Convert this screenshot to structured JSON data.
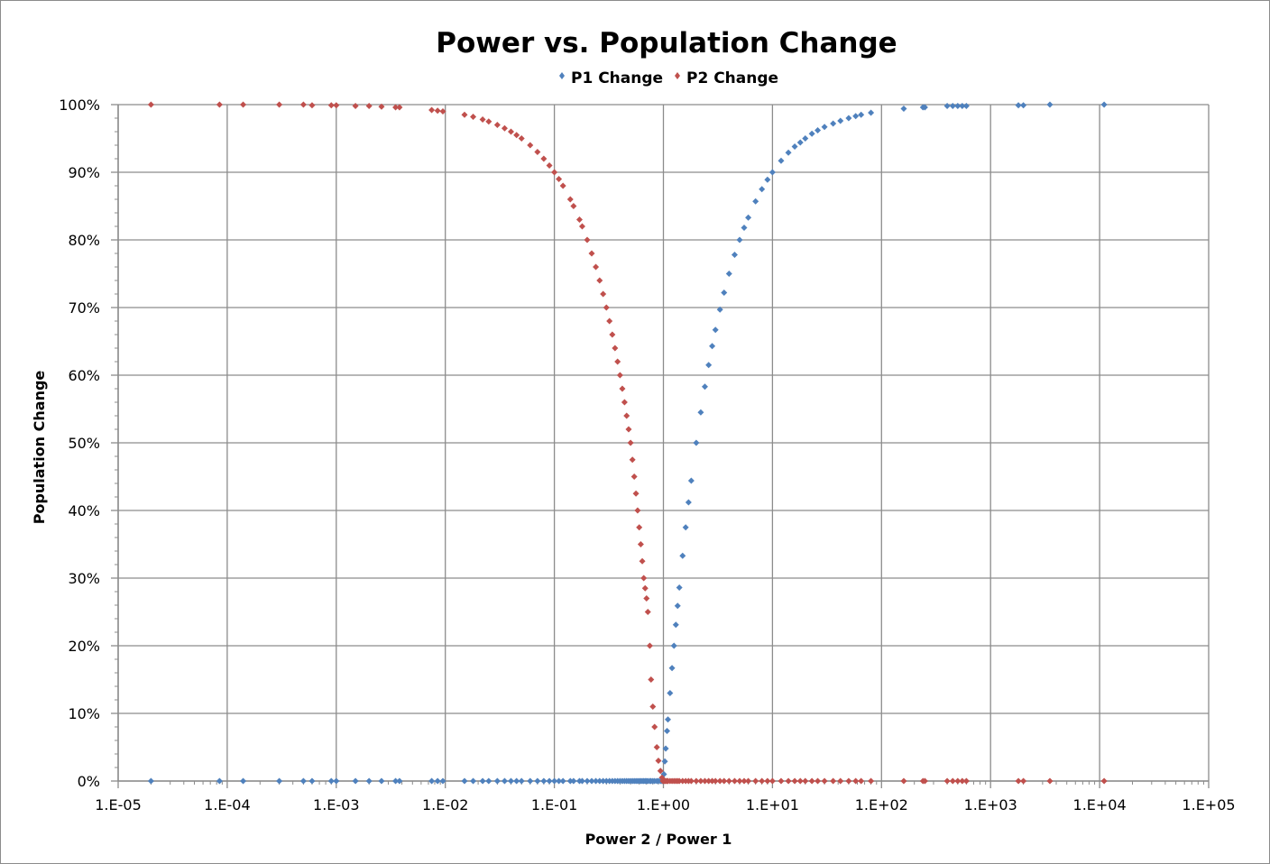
{
  "chart_data": {
    "type": "scatter",
    "title": "Power vs. Population Change",
    "xlabel": "Power 2 / Power 1",
    "ylabel": "Population Change",
    "x_scale": "log",
    "xlim": [
      1e-05,
      100000
    ],
    "ylim": [
      0,
      100
    ],
    "y_unit": "%",
    "grid": true,
    "legend_position": "top",
    "x_tick_labels": [
      "1.E-05",
      "1.E-04",
      "1.E-03",
      "1.E-02",
      "1.E-01",
      "1.E+00",
      "1.E+01",
      "1.E+02",
      "1.E+03",
      "1.E+04",
      "1.E+05"
    ],
    "y_tick_labels": [
      "0%",
      "10%",
      "20%",
      "30%",
      "40%",
      "50%",
      "60%",
      "70%",
      "80%",
      "90%",
      "100%"
    ],
    "x": [
      2e-05,
      8.5e-05,
      0.00014,
      0.0003,
      0.0005,
      0.0006,
      0.0009,
      0.001,
      0.0015,
      0.002,
      0.0026,
      0.0035,
      0.0038,
      0.0075,
      0.0085,
      0.0095,
      0.015,
      0.018,
      0.022,
      0.025,
      0.03,
      0.035,
      0.04,
      0.045,
      0.05,
      0.06,
      0.07,
      0.08,
      0.09,
      0.1,
      0.11,
      0.12,
      0.14,
      0.15,
      0.17,
      0.18,
      0.2,
      0.22,
      0.24,
      0.26,
      0.28,
      0.3,
      0.32,
      0.34,
      0.36,
      0.38,
      0.4,
      0.42,
      0.44,
      0.46,
      0.48,
      0.5,
      0.52,
      0.54,
      0.56,
      0.58,
      0.6,
      0.62,
      0.64,
      0.66,
      0.68,
      0.7,
      0.72,
      0.75,
      0.77,
      0.8,
      0.83,
      0.87,
      0.9,
      0.94,
      0.97,
      0.99,
      1.01,
      1.03,
      1.05,
      1.08,
      1.1,
      1.15,
      1.2,
      1.25,
      1.3,
      1.35,
      1.4,
      1.5,
      1.6,
      1.7,
      1.8,
      2,
      2.2,
      2.4,
      2.6,
      2.8,
      3,
      3.3,
      3.6,
      4,
      4.5,
      5,
      5.5,
      6,
      7,
      8,
      9,
      10,
      12,
      14,
      16,
      18,
      20,
      23,
      26,
      30,
      36,
      42,
      50,
      58,
      65,
      80,
      160,
      240,
      250,
      400,
      450,
      500,
      550,
      600,
      1800,
      2000,
      3500,
      11000
    ],
    "series": [
      {
        "name": "P1 Change",
        "color": "#4f81bd",
        "marker": "diamond",
        "values": [
          0,
          0,
          0,
          0,
          0,
          0,
          0,
          0,
          0,
          0,
          0,
          0,
          0,
          0,
          0,
          0,
          0,
          0,
          0,
          0,
          0,
          0,
          0,
          0,
          0,
          0,
          0,
          0,
          0,
          0,
          0,
          0,
          0,
          0,
          0,
          0,
          0,
          0,
          0,
          0,
          0,
          0,
          0,
          0,
          0,
          0,
          0,
          0,
          0,
          0,
          0,
          0,
          0,
          0,
          0,
          0,
          0,
          0,
          0,
          0,
          0,
          0,
          0,
          0,
          0,
          0,
          0,
          0,
          0,
          0,
          0,
          0,
          1.0,
          2.9,
          4.8,
          7.4,
          9.1,
          13.0,
          16.7,
          20.0,
          23.1,
          25.9,
          28.6,
          33.3,
          37.5,
          41.2,
          44.4,
          50,
          54.5,
          58.3,
          61.5,
          64.3,
          66.7,
          69.7,
          72.2,
          75,
          77.8,
          80,
          81.8,
          83.3,
          85.7,
          87.5,
          88.9,
          90,
          91.7,
          92.9,
          93.8,
          94.4,
          95,
          95.7,
          96.2,
          96.7,
          97.2,
          97.6,
          98,
          98.3,
          98.5,
          98.8,
          99.4,
          99.6,
          99.6,
          99.8,
          99.8,
          99.8,
          99.8,
          99.8,
          99.9,
          99.9,
          100,
          100
        ]
      },
      {
        "name": "P2 Change",
        "color": "#c0504d",
        "marker": "diamond",
        "values": [
          100,
          100,
          100,
          100,
          100,
          99.9,
          99.9,
          99.9,
          99.8,
          99.8,
          99.7,
          99.6,
          99.6,
          99.2,
          99.1,
          99.0,
          98.5,
          98.2,
          97.8,
          97.5,
          97,
          96.5,
          96,
          95.5,
          95,
          94,
          93,
          92,
          91,
          90,
          89,
          88,
          86,
          85,
          83,
          82,
          80,
          78,
          76,
          74,
          72,
          70,
          68,
          66,
          64,
          62,
          60,
          58,
          56,
          54,
          52,
          50,
          47.5,
          45,
          42.5,
          40,
          37.5,
          35,
          32.5,
          30,
          28.5,
          27,
          25,
          20,
          15,
          11,
          8,
          5,
          3,
          1.5,
          0.5,
          0,
          0,
          0,
          0,
          0,
          0,
          0,
          0,
          0,
          0,
          0,
          0,
          0,
          0,
          0,
          0,
          0,
          0,
          0,
          0,
          0,
          0,
          0,
          0,
          0,
          0,
          0,
          0,
          0,
          0,
          0,
          0,
          0,
          0,
          0,
          0,
          0,
          0,
          0,
          0,
          0,
          0,
          0,
          0,
          0,
          0,
          0,
          0,
          0,
          0,
          0,
          0,
          0,
          0,
          0,
          0,
          0,
          0,
          0
        ]
      }
    ]
  }
}
